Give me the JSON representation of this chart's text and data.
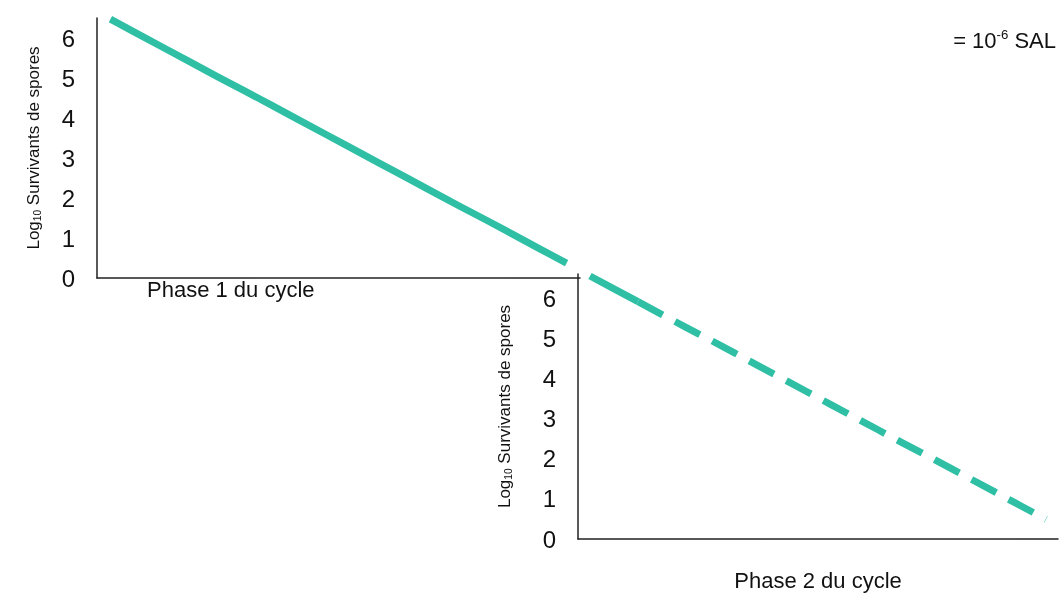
{
  "chart_data": [
    {
      "type": "line",
      "ylabel": "Log$_{10}$ Survivants de spores",
      "xlabel": "Phase 1 du cycle",
      "annotations": [
        "= 10$^{-6}$ SAL"
      ],
      "categories": [
        null,
        null,
        null,
        null,
        null,
        null,
        null,
        null,
        null,
        null,
        null,
        null,
        null,
        null,
        null,
        null,
        null,
        null
      ],
      "ylim": [
        0,
        6.5
      ],
      "yticks": [
        0,
        1,
        2,
        3,
        4,
        5,
        6
      ],
      "tick_labels": "y",
      "grid": false,
      "marker": "none",
      "series": [
        {
          "color": "#2ebfa5",
          "values": [
            6.47,
            6.11,
            5.75,
            5.39,
            5.03,
            4.68,
            4.32,
            3.96,
            3.6,
            3.24,
            2.88,
            2.52,
            2.16,
            1.8,
            1.45,
            1.09,
            0.73,
            0.37
          ],
          "line_style": "solid"
        }
      ]
    },
    {
      "type": "line",
      "ylabel": "Log$_{10}$ Survivants de spores",
      "xlabel": "Phase 2 du cycle",
      "categories": [
        null,
        null,
        null,
        null,
        null,
        null,
        null,
        null,
        null,
        null,
        null,
        null,
        null,
        null,
        null,
        null,
        null,
        null,
        null,
        null
      ],
      "ylim": [
        0,
        6.6
      ],
      "yticks": [
        0,
        1,
        2,
        3,
        4,
        5,
        6
      ],
      "tick_labels": "y",
      "grid": false,
      "marker": "none",
      "series": [
        {
          "color": "#2ebfa5",
          "values": [
            6.55,
            6.23,
            5.91,
            null,
            null,
            null,
            null,
            null,
            null,
            null,
            null,
            null,
            null,
            null,
            null,
            null,
            null,
            null,
            null,
            null
          ],
          "line_style": "solid"
        },
        {
          "color": "#2ebfa5",
          "values": [
            null,
            null,
            5.91,
            5.59,
            5.27,
            4.96,
            4.64,
            4.32,
            4.0,
            3.68,
            3.36,
            3.04,
            2.72,
            2.4,
            2.09,
            1.77,
            1.45,
            1.13,
            0.81,
            0.49
          ],
          "line_style": "dashed"
        }
      ]
    }
  ]
}
